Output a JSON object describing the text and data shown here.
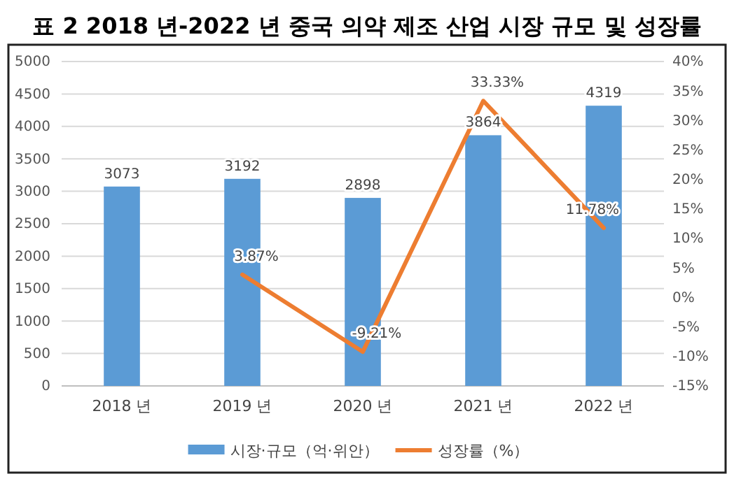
{
  "chart_data": {
    "type": "bar",
    "title": "표 2   2018 년-2022 년 중국 의약 제조 산업 시장 규모 및 성장률",
    "categories": [
      "2018 년",
      "2019 년",
      "2020 년",
      "2021 년",
      "2022 년"
    ],
    "series": [
      {
        "name": "시장·규모（억·위안）",
        "color": "#5b9bd5",
        "values": [
          3073,
          3192,
          2898,
          3864,
          4319
        ],
        "value_labels": [
          "3073",
          "3192",
          "2898",
          "3864",
          "4319"
        ]
      },
      {
        "name": "성장률（%）",
        "type": "line",
        "axis": "y2",
        "color": "#ed7d31",
        "values": [
          null,
          3.87,
          -9.21,
          33.33,
          11.78
        ],
        "value_labels": [
          null,
          "3.87%",
          "-9.21%",
          "33.33%",
          "11.78%"
        ]
      }
    ],
    "ylim": [
      0,
      5000
    ],
    "yticks": [
      0,
      500,
      1000,
      1500,
      2000,
      2500,
      3000,
      3500,
      4000,
      4500,
      5000
    ],
    "y2lim": [
      -15,
      40
    ],
    "y2ticks": [
      {
        "value": -15,
        "label": "-15%"
      },
      {
        "value": -10,
        "label": "-10%"
      },
      {
        "value": -5,
        "label": "-5%"
      },
      {
        "value": 0,
        "label": "0%"
      },
      {
        "value": 5,
        "label": "5%"
      },
      {
        "value": 10,
        "label": "10%"
      },
      {
        "value": 15,
        "label": "15%"
      },
      {
        "value": 20,
        "label": "20%"
      },
      {
        "value": 25,
        "label": "25%"
      },
      {
        "value": 30,
        "label": "30%"
      },
      {
        "value": 35,
        "label": "35%"
      },
      {
        "value": 40,
        "label": "40%"
      }
    ],
    "grid": "y",
    "legend": "bottom",
    "marker": "none",
    "line_style": "solid"
  }
}
